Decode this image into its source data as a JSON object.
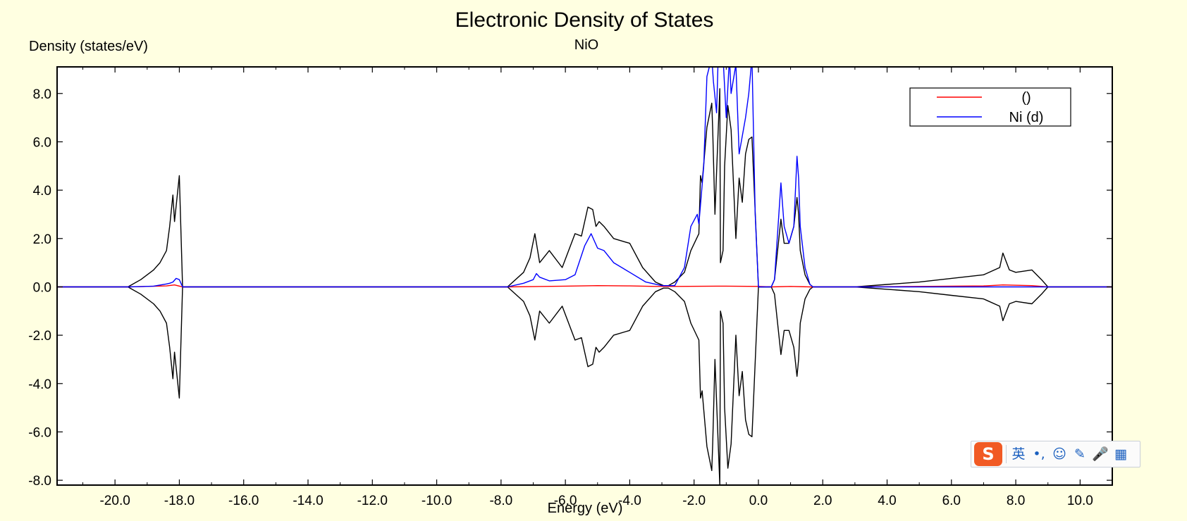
{
  "chart_data": {
    "type": "line",
    "title": "Electronic Density of States",
    "subtitle": "NiO",
    "xlabel": "Energy (eV)",
    "ylabel": "Density (states/eV)",
    "xlim": [
      -21.8,
      11.0
    ],
    "ylim": [
      -8.2,
      9.1
    ],
    "xticks": [
      -20.0,
      -18.0,
      -16.0,
      -14.0,
      -12.0,
      -10.0,
      -8.0,
      -6.0,
      -4.0,
      -2.0,
      0.0,
      2.0,
      4.0,
      6.0,
      8.0,
      10.0
    ],
    "yticks": [
      -8.0,
      -6.0,
      -4.0,
      -2.0,
      0.0,
      2.0,
      4.0,
      6.0,
      8.0
    ],
    "legend_position": "top-right",
    "series": [
      {
        "name": "()",
        "legend": true,
        "color": "#ff0000",
        "x": [
          -21.8,
          -19.6,
          -19.0,
          -18.4,
          -18.15,
          -17.9,
          -7.8,
          -6.0,
          -5.0,
          -4.0,
          -3.2,
          -2.6,
          -1.0,
          0.0,
          0.4,
          1.0,
          1.6,
          3.0,
          5.0,
          7.0,
          7.6,
          8.5,
          9.0,
          11.0
        ],
        "y": [
          0,
          0,
          0.02,
          0.04,
          0.08,
          0,
          0,
          0.03,
          0.05,
          0.04,
          0.02,
          0.02,
          0.03,
          0.02,
          0,
          0.02,
          0,
          0,
          0.02,
          0.04,
          0.08,
          0.05,
          0,
          0
        ]
      },
      {
        "name": "Ni (d)",
        "legend": true,
        "color": "#0000ff",
        "x": [
          -21.8,
          -19.6,
          -19.2,
          -18.8,
          -18.4,
          -18.3,
          -18.2,
          -18.1,
          -18.0,
          -17.9,
          -7.8,
          -7.3,
          -7.0,
          -6.9,
          -6.8,
          -6.5,
          -6.0,
          -5.7,
          -5.4,
          -5.2,
          -5.0,
          -4.8,
          -4.5,
          -4.0,
          -3.5,
          -3.0,
          -2.6,
          -2.3,
          -2.1,
          -1.9,
          -1.85,
          -1.7,
          -1.6,
          -1.45,
          -1.4,
          -1.3,
          -1.25,
          -1.15,
          -1.1,
          -1.0,
          -0.9,
          -0.85,
          -0.7,
          -0.6,
          -0.4,
          -0.3,
          -0.2,
          -0.1,
          0.0,
          0.4,
          0.5,
          0.7,
          0.8,
          0.95,
          1.1,
          1.2,
          1.25,
          1.3,
          1.45,
          1.6,
          1.7,
          11.0
        ],
        "y": [
          0,
          0,
          0.01,
          0.03,
          0.12,
          0.15,
          0.2,
          0.35,
          0.3,
          0,
          0,
          0.15,
          0.3,
          0.55,
          0.4,
          0.25,
          0.3,
          0.5,
          1.7,
          2.2,
          1.6,
          1.5,
          1.0,
          0.6,
          0.2,
          0.05,
          0.05,
          0.8,
          2.5,
          3.0,
          2.6,
          5.0,
          8.7,
          9.5,
          8.5,
          7.2,
          9.5,
          9.2,
          9.5,
          7.0,
          9.5,
          8.0,
          9.2,
          5.5,
          7.0,
          8.0,
          9.5,
          3.0,
          0,
          0,
          0.3,
          4.3,
          2.5,
          1.8,
          2.5,
          5.4,
          4.5,
          2.5,
          0.8,
          0.1,
          0,
          0
        ]
      },
      {
        "name": "",
        "legend": false,
        "color": "#000000",
        "x": [
          -21.8,
          -19.6,
          -19.2,
          -18.8,
          -18.6,
          -18.4,
          -18.3,
          -18.2,
          -18.15,
          -18.0,
          -17.9,
          -7.8,
          -7.3,
          -7.1,
          -6.95,
          -6.8,
          -6.5,
          -6.1,
          -5.7,
          -5.5,
          -5.3,
          -5.15,
          -5.05,
          -4.95,
          -4.8,
          -4.5,
          -4.0,
          -3.6,
          -3.2,
          -2.95,
          -2.8,
          -2.6,
          -2.3,
          -2.1,
          -1.85,
          -1.8,
          -1.75,
          -1.6,
          -1.45,
          -1.42,
          -1.35,
          -1.2,
          -1.18,
          -1.1,
          -1.05,
          -0.95,
          -0.85,
          -0.7,
          -0.6,
          -0.5,
          -0.4,
          -0.3,
          -0.2,
          0.0,
          0.4,
          0.5,
          0.7,
          0.8,
          0.95,
          1.1,
          1.2,
          1.25,
          1.3,
          1.45,
          1.6,
          1.7,
          3.0,
          4.0,
          5.0,
          6.0,
          7.0,
          7.5,
          7.6,
          7.8,
          8.0,
          8.5,
          8.8,
          9.0,
          11.0
        ],
        "y": [
          0,
          0,
          0.3,
          0.7,
          1.0,
          1.5,
          2.5,
          3.8,
          2.7,
          4.6,
          0,
          0,
          0.6,
          1.2,
          2.2,
          1.0,
          1.5,
          0.8,
          2.2,
          2.1,
          3.3,
          3.2,
          2.5,
          2.7,
          2.5,
          2.0,
          1.8,
          0.8,
          0.2,
          0.05,
          0.05,
          0.2,
          0.6,
          1.5,
          2.2,
          4.6,
          4.3,
          6.6,
          7.6,
          6.5,
          3.0,
          8.2,
          1.0,
          1.5,
          5.0,
          7.5,
          6.5,
          2.0,
          4.5,
          3.5,
          5.5,
          6.1,
          6.2,
          0,
          0,
          0.3,
          2.8,
          1.8,
          1.8,
          2.5,
          3.7,
          3.0,
          1.5,
          0.5,
          0.1,
          0,
          0,
          0.1,
          0.2,
          0.35,
          0.5,
          0.8,
          1.4,
          0.7,
          0.6,
          0.7,
          0.3,
          0,
          0
        ]
      }
    ],
    "mirror_series": {
      "legend": false,
      "color": "#000000",
      "x": [
        -21.8,
        -19.6,
        -19.2,
        -18.8,
        -18.6,
        -18.4,
        -18.3,
        -18.2,
        -18.15,
        -18.0,
        -17.9,
        -7.8,
        -7.3,
        -7.1,
        -6.95,
        -6.8,
        -6.5,
        -6.1,
        -5.7,
        -5.5,
        -5.3,
        -5.15,
        -5.05,
        -4.95,
        -4.8,
        -4.5,
        -4.0,
        -3.6,
        -3.2,
        -2.95,
        -2.8,
        -2.6,
        -2.3,
        -2.1,
        -1.85,
        -1.8,
        -1.75,
        -1.6,
        -1.45,
        -1.42,
        -1.35,
        -1.2,
        -1.18,
        -1.1,
        -1.05,
        -0.95,
        -0.85,
        -0.7,
        -0.6,
        -0.5,
        -0.4,
        -0.3,
        -0.2,
        0.0,
        0.4,
        0.5,
        0.7,
        0.8,
        0.95,
        1.1,
        1.2,
        1.25,
        1.3,
        1.45,
        1.6,
        1.7,
        3.0,
        4.0,
        5.0,
        6.0,
        7.0,
        7.5,
        7.6,
        7.8,
        8.0,
        8.5,
        8.8,
        9.0,
        11.0
      ],
      "y": [
        0,
        0,
        -0.3,
        -0.7,
        -1.0,
        -1.5,
        -2.5,
        -3.8,
        -2.7,
        -4.6,
        0,
        0,
        -0.6,
        -1.2,
        -2.2,
        -1.0,
        -1.5,
        -0.8,
        -2.2,
        -2.1,
        -3.3,
        -3.2,
        -2.5,
        -2.7,
        -2.5,
        -2.0,
        -1.8,
        -0.8,
        -0.2,
        -0.05,
        -0.05,
        -0.2,
        -0.6,
        -1.5,
        -2.2,
        -4.6,
        -4.3,
        -6.6,
        -7.6,
        -6.5,
        -3.0,
        -8.2,
        -1.0,
        -1.5,
        -5.0,
        -7.5,
        -6.5,
        -2.0,
        -4.5,
        -3.5,
        -5.5,
        -6.1,
        -6.2,
        0,
        0,
        -0.3,
        -2.8,
        -1.8,
        -1.8,
        -2.5,
        -3.7,
        -3.0,
        -1.5,
        -0.5,
        -0.1,
        0,
        0,
        -0.1,
        -0.2,
        -0.35,
        -0.5,
        -0.8,
        -1.4,
        -0.7,
        -0.6,
        -0.7,
        -0.3,
        0,
        0
      ]
    }
  },
  "ime_toolbar": {
    "logo": "S",
    "items": [
      {
        "label": "英",
        "icon": "english-mode-icon"
      },
      {
        "label": "•,",
        "icon": "punctuation-icon"
      },
      {
        "label": "☺",
        "icon": "emoji-icon"
      },
      {
        "label": "✎",
        "icon": "pen-icon"
      },
      {
        "label": "🎤",
        "icon": "microphone-icon"
      },
      {
        "label": "▦",
        "icon": "toolbox-icon"
      }
    ]
  }
}
